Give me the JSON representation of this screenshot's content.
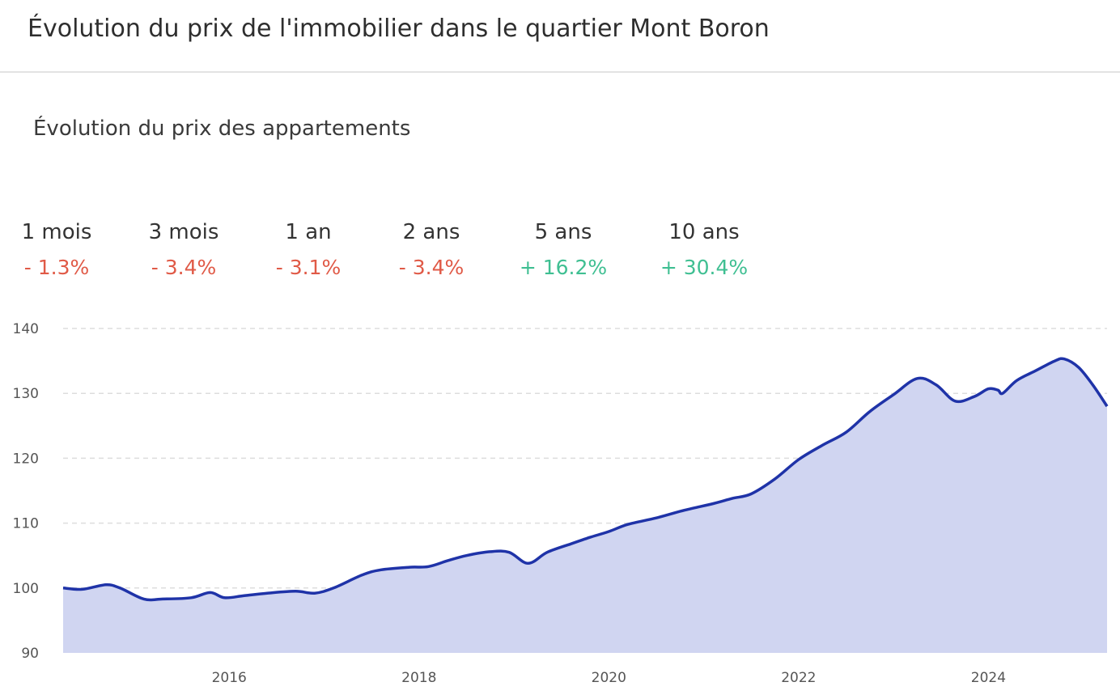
{
  "header": {
    "title": "Évolution du prix de l'immobilier dans le quartier Mont Boron"
  },
  "section": {
    "title": "Évolution du prix des appartements"
  },
  "stats": [
    {
      "label": "1 mois",
      "value": "- 1.3%",
      "trend": "negative"
    },
    {
      "label": "3 mois",
      "value": "- 3.4%",
      "trend": "negative"
    },
    {
      "label": "1 an",
      "value": "- 3.1%",
      "trend": "negative"
    },
    {
      "label": "2 ans",
      "value": "- 3.4%",
      "trend": "negative"
    },
    {
      "label": "5 ans",
      "value": "+ 16.2%",
      "trend": "positive"
    },
    {
      "label": "10 ans",
      "value": "+ 30.4%",
      "trend": "positive"
    }
  ],
  "colors": {
    "line": "#1f33a8",
    "area": "#d0d5f1",
    "negative": "#e05a47",
    "positive": "#3fbf92",
    "grid": "#dddddd"
  },
  "chart_data": {
    "type": "area",
    "title": "",
    "xlabel": "",
    "ylabel": "",
    "ylim": [
      90,
      140
    ],
    "yticks": [
      90,
      100,
      110,
      120,
      130,
      140
    ],
    "xticks": [
      "2016",
      "2018",
      "2020",
      "2022",
      "2024"
    ],
    "xlim": [
      2014.25,
      2025.25
    ],
    "grid": true,
    "x": [
      2014.25,
      2014.45,
      2014.7,
      2014.85,
      2015.1,
      2015.3,
      2015.6,
      2015.8,
      2015.95,
      2016.15,
      2016.4,
      2016.7,
      2016.9,
      2017.1,
      2017.4,
      2017.6,
      2017.9,
      2018.1,
      2018.3,
      2018.5,
      2018.75,
      2018.95,
      2019.15,
      2019.35,
      2019.6,
      2019.8,
      2020.0,
      2020.2,
      2020.5,
      2020.8,
      2021.1,
      2021.3,
      2021.5,
      2021.75,
      2022.0,
      2022.25,
      2022.5,
      2022.75,
      2023.0,
      2023.25,
      2023.45,
      2023.65,
      2023.85,
      2024.0,
      2024.1,
      2024.15,
      2024.3,
      2024.5,
      2024.7,
      2024.8,
      2024.95,
      2025.1,
      2025.25
    ],
    "values": [
      100.0,
      99.8,
      100.5,
      100.0,
      98.3,
      98.3,
      98.5,
      99.3,
      98.5,
      98.8,
      99.2,
      99.5,
      99.2,
      100.0,
      102.0,
      102.8,
      103.2,
      103.3,
      104.2,
      105.0,
      105.6,
      105.5,
      103.8,
      105.5,
      106.8,
      107.8,
      108.7,
      109.8,
      110.8,
      112.0,
      113.0,
      113.8,
      114.5,
      116.8,
      119.8,
      122.0,
      124.0,
      127.2,
      129.8,
      132.3,
      131.3,
      128.8,
      129.5,
      130.7,
      130.5,
      130.0,
      132.0,
      133.5,
      135.0,
      135.3,
      134.0,
      131.3,
      128.0
    ]
  }
}
